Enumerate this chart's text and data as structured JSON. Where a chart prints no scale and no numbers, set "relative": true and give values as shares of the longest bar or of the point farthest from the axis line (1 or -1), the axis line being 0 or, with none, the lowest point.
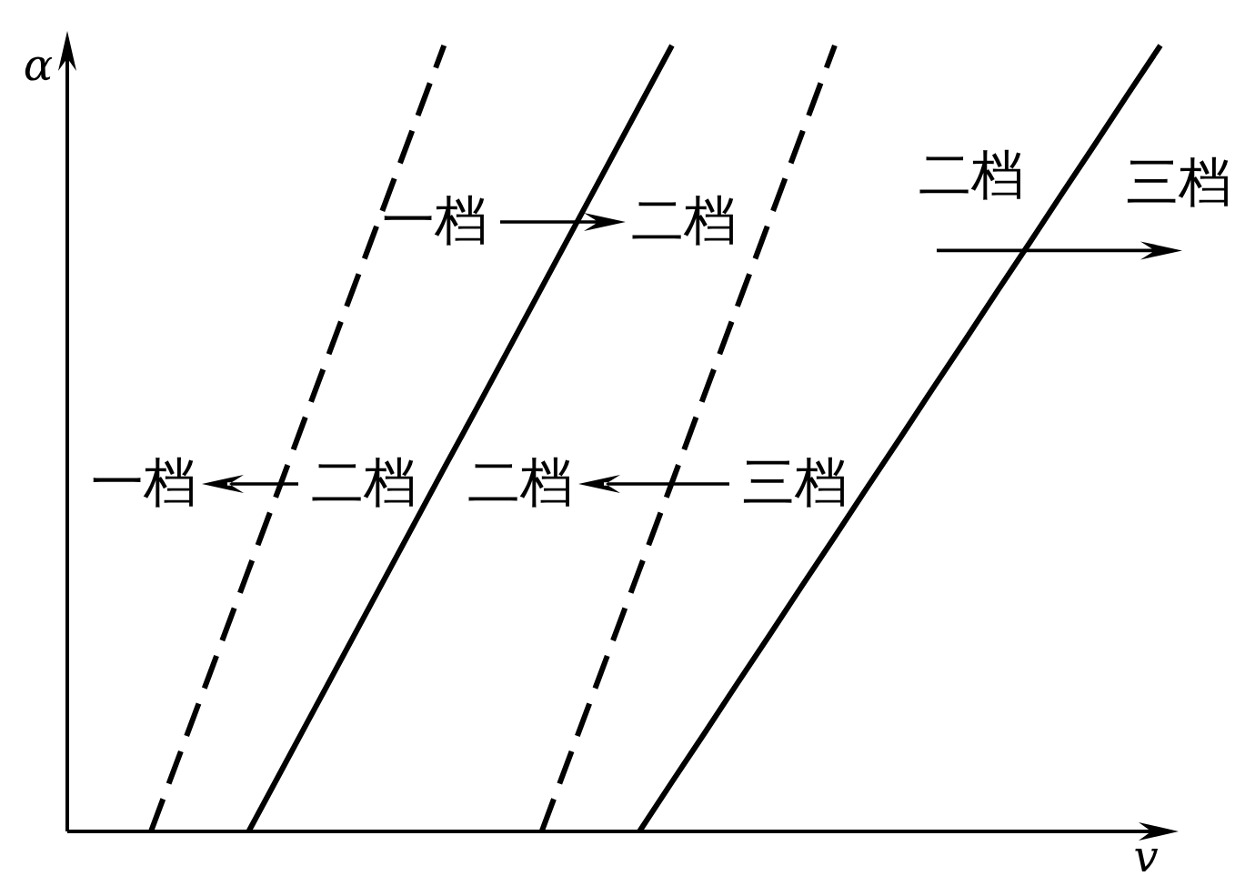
{
  "chart_data": {
    "type": "line",
    "relative": true,
    "xlabel": "v",
    "ylabel": "α",
    "categories": [
      null,
      null,
      null,
      null,
      null,
      null,
      null,
      null,
      null,
      null,
      null,
      null,
      null,
      null,
      null,
      null,
      null,
      null,
      null,
      null,
      null,
      null,
      null,
      null,
      null,
      null,
      null,
      null,
      null,
      null,
      null,
      null
    ],
    "series": [
      {
        "color": "#000000",
        "line_style": "dashed",
        "values": [
          0,
          0.111,
          0.222,
          0.333,
          0.444,
          0.556,
          0.667,
          0.778,
          0.889,
          1,
          null,
          null,
          null,
          null,
          null,
          null,
          null,
          null,
          null,
          null,
          null,
          null,
          null,
          null,
          null,
          null,
          null,
          null,
          null,
          null,
          null,
          null
        ]
      },
      {
        "color": "#000000",
        "line_style": "solid",
        "values": [
          null,
          null,
          null,
          0,
          0.077,
          0.154,
          0.231,
          0.308,
          0.385,
          0.462,
          0.538,
          0.615,
          0.692,
          0.769,
          0.846,
          0.923,
          1,
          null,
          null,
          null,
          null,
          null,
          null,
          null,
          null,
          null,
          null,
          null,
          null,
          null,
          null,
          null
        ]
      },
      {
        "color": "#000000",
        "line_style": "dashed",
        "values": [
          null,
          null,
          null,
          null,
          null,
          null,
          null,
          null,
          null,
          null,
          null,
          null,
          0,
          0.111,
          0.222,
          0.333,
          0.444,
          0.556,
          0.667,
          0.778,
          0.889,
          1,
          null,
          null,
          null,
          null,
          null,
          null,
          null,
          null,
          null,
          null
        ]
      },
      {
        "color": "#000000",
        "line_style": "solid",
        "values": [
          null,
          null,
          null,
          null,
          null,
          null,
          null,
          null,
          null,
          null,
          null,
          null,
          null,
          null,
          null,
          0,
          0.063,
          0.125,
          0.188,
          0.25,
          0.313,
          0.375,
          0.438,
          0.5,
          0.563,
          0.625,
          0.688,
          0.75,
          0.813,
          0.875,
          0.938,
          1
        ]
      }
    ],
    "annotations": [
      "一档",
      "二档",
      "二档",
      "三档",
      "二档",
      "一档",
      "三档",
      "二档"
    ]
  }
}
